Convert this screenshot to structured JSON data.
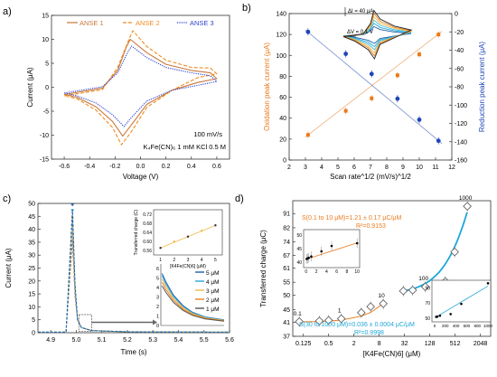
{
  "panels": {
    "a": "a)",
    "b": "b)",
    "c": "c)",
    "d": "d)"
  },
  "chart_data": [
    {
      "id": "a",
      "type": "line",
      "xlabel": "Voltage (V)",
      "ylabel": "Current (μA)",
      "xlim": [
        -0.7,
        0.7
      ],
      "ylim": [
        -15,
        15
      ],
      "xticks": [
        -0.6,
        -0.4,
        -0.2,
        0.0,
        0.2,
        0.4,
        0.6
      ],
      "xtick_labels": [
        "-0.6",
        "-0.4",
        "-0.2",
        "0.0",
        "0.2",
        "0.4",
        "0.6"
      ],
      "yticks": [
        -15,
        -10,
        -5,
        0,
        5,
        10,
        15
      ],
      "legend": {
        "placement": "top",
        "entries": [
          "ANSE 1",
          "ANSE 2",
          "ANSE 3"
        ]
      },
      "annotations": [
        "100 mV/s",
        "K₄Fe(CN)₆ 1 mM KCl 0.5 M"
      ],
      "series": [
        {
          "name": "ANSE 1",
          "color": "#c8783a",
          "style": "solid",
          "peak_ox": [
            -0.08,
            10.0
          ],
          "peak_red": [
            -0.14,
            -10.2
          ],
          "start": [
            -0.6,
            -1.5
          ],
          "end": [
            0.6,
            1.8
          ]
        },
        {
          "name": "ANSE 2",
          "color": "#f28c1e",
          "style": "dashed",
          "peak_ox": [
            -0.06,
            11.8
          ],
          "peak_red": [
            -0.15,
            -12.0
          ],
          "start": [
            -0.6,
            -1.8
          ],
          "end": [
            0.6,
            2.8
          ]
        },
        {
          "name": "ANSE 3",
          "color": "#2f42d0",
          "style": "dotted",
          "peak_ox": [
            -0.07,
            8.6
          ],
          "peak_red": [
            -0.13,
            -8.2
          ],
          "start": [
            -0.6,
            -1.2
          ],
          "end": [
            0.6,
            1.2
          ]
        }
      ]
    },
    {
      "id": "b",
      "type": "scatter",
      "xlabel": "Scan rate^1/2 (mV/s)^1/2",
      "ylabel_left": "Oxidation peak current (μA)",
      "ylabel_right": "Reduction peak current (μA)",
      "xlim": [
        2,
        12
      ],
      "xticks": [
        2,
        3,
        4,
        5,
        6,
        7,
        8,
        9,
        10,
        11,
        12
      ],
      "ylim_left": [
        0,
        140
      ],
      "yticks_left": [
        0,
        20,
        40,
        60,
        80,
        100,
        120,
        140
      ],
      "ylim_right": [
        -160,
        0
      ],
      "yticks_right": [
        -160,
        -140,
        -120,
        -100,
        -80,
        -60,
        -40,
        -20,
        0
      ],
      "inset_labels": [
        "ΔI = 40 μA",
        "ΔV = 0.1 V"
      ],
      "series": [
        {
          "name": "",
          "axis": "left",
          "color": "#ea7a1c",
          "x": [
            3.16,
            5.48,
            7.07,
            8.66,
            10.0,
            11.18
          ],
          "y": [
            24,
            47,
            59,
            81,
            101,
            120
          ]
        },
        {
          "name": "",
          "axis": "right",
          "color": "#1f46b8",
          "x": [
            3.16,
            5.48,
            7.07,
            8.66,
            10.0,
            11.18
          ],
          "y": [
            -20,
            -44,
            -66,
            -93,
            -116,
            -139
          ]
        }
      ]
    },
    {
      "id": "c",
      "type": "line",
      "xlabel": "Time (s)",
      "ylabel": "Current (μA)",
      "xlim": [
        4.85,
        5.6
      ],
      "ylim": [
        0,
        50
      ],
      "xticks": [
        4.9,
        5.0,
        5.1,
        5.2,
        5.3,
        5.4,
        5.5,
        5.6
      ],
      "yticks": [
        0,
        5,
        10,
        15,
        20,
        25,
        30,
        35,
        40,
        45,
        50
      ],
      "legend": {
        "placement": "inset-right",
        "entries": [
          "5 μM",
          "4 μM",
          "3 μM",
          "2 μM",
          "1 μM"
        ]
      },
      "series": [
        {
          "name": "5 μM",
          "color": "#1f5fa8",
          "peak": 47.8
        },
        {
          "name": "4 μM",
          "color": "#2ea6d9",
          "peak": 45.6
        },
        {
          "name": "3 μM",
          "color": "#f2b84a",
          "peak": 42.7
        },
        {
          "name": "2 μM",
          "color": "#e8821f",
          "peak": 39.6
        },
        {
          "name": "1 μM",
          "color": "#555555",
          "peak": 36.4
        }
      ],
      "inset": {
        "ylabel": "Transferred charge (C)",
        "xlabel": "[K4Fe(CN)6] (μM)",
        "xticks": [
          1,
          2,
          3,
          4,
          5
        ],
        "yticks": [
          0.56,
          0.6,
          0.64,
          0.68,
          0.72
        ],
        "ytick_labels": [
          "0.56",
          "0.60",
          "0.64",
          "0.68",
          "0.72"
        ],
        "x": [
          1,
          2,
          3,
          4,
          5
        ],
        "y": [
          0.571,
          0.599,
          0.621,
          0.647,
          0.671
        ]
      },
      "zoom_inset": {
        "yticks": [
          0,
          1,
          2,
          3,
          4,
          5,
          6
        ]
      }
    },
    {
      "id": "d",
      "type": "scatter",
      "xlabel": "[K4Fe(CN)6] (μM)",
      "ylabel": "Transferred charge (μC)",
      "xscale": "log2",
      "xticks": [
        0.125,
        0.5,
        2,
        8,
        32,
        128,
        512,
        2048
      ],
      "xtick_labels": [
        "0.125",
        "0.5",
        "2",
        "8",
        "32",
        "128",
        "512",
        "2048"
      ],
      "yticks": [
        37,
        41,
        45,
        50,
        55,
        61,
        67,
        74,
        82,
        91
      ],
      "ylim": [
        37,
        100
      ],
      "x": [
        0.1,
        0.3,
        0.5,
        1,
        3,
        5,
        10,
        30,
        50,
        100,
        300,
        500,
        1000
      ],
      "y": [
        41.2,
        41.4,
        41.6,
        42.1,
        44.0,
        46.0,
        47.0,
        51.6,
        51.9,
        53.2,
        55.3,
        68.7,
        96.0
      ],
      "point_labels": [
        {
          "i": 0,
          "label": "0.1"
        },
        {
          "i": 3,
          "label": "1"
        },
        {
          "i": 6,
          "label": "10"
        },
        {
          "i": 9,
          "label": "100"
        },
        {
          "i": 12,
          "label": "1000"
        }
      ],
      "annotations": {
        "fit_low": "S(0.1 to 10 μM)=1.21 ± 0.17 μC/μM",
        "r2_low": "R²=0.9153",
        "fit_high": "S(30 to 1000 μM)=0.036 ± 0.0004 μC/μM",
        "r2_high": "R²=0.9998"
      },
      "inset_low": {
        "xticks": [
          0,
          2,
          4,
          6,
          8,
          10
        ],
        "yticks": [
          40,
          45,
          50
        ],
        "x": [
          0.1,
          0.3,
          0.5,
          1,
          3,
          5,
          10
        ],
        "y": [
          41.2,
          41.4,
          41.6,
          42.1,
          44.0,
          46.0,
          47.0
        ]
      },
      "inset_high": {
        "xticks": [
          0,
          200,
          400,
          600,
          800,
          1000
        ],
        "yticks": [
          50,
          70,
          90
        ],
        "x": [
          30,
          50,
          100,
          300,
          500,
          1000
        ],
        "y": [
          51.6,
          51.9,
          53.2,
          55.3,
          68.7,
          96.0
        ]
      }
    }
  ]
}
